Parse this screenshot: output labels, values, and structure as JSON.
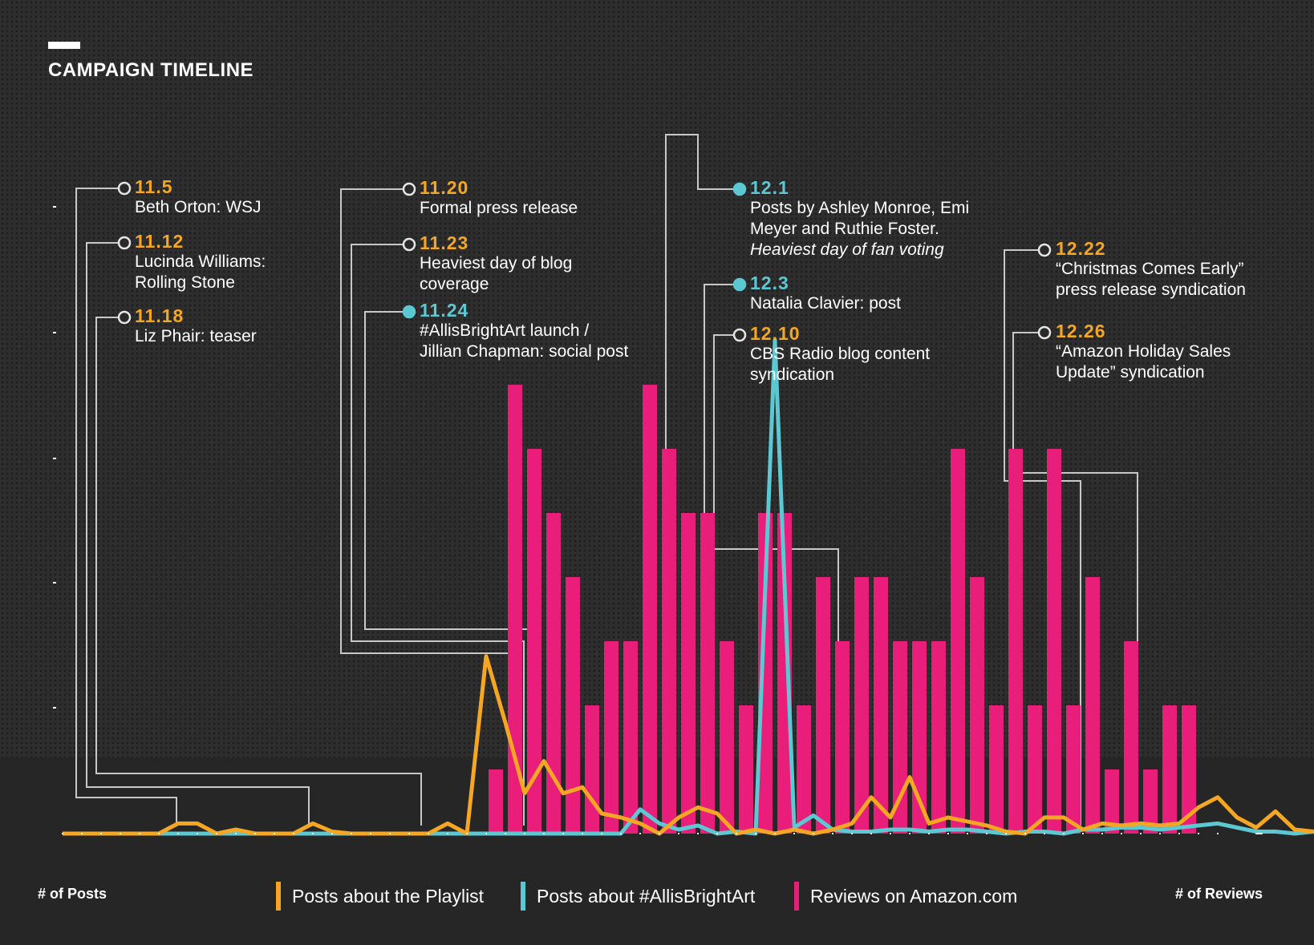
{
  "title": "CAMPAIGN TIMELINE",
  "colors": {
    "background": "#2a2a2a",
    "bottom_band": "#262626",
    "playlist": "#f5a623",
    "allisbrightart": "#5bc8d2",
    "reviews": "#e91e7a",
    "leader": "#c8c8c8",
    "text": "#ffffff"
  },
  "axes": {
    "left_label": "# of Posts",
    "right_label": "# of Reviews"
  },
  "legend": {
    "playlist": "Posts about the Playlist",
    "allisbrightart": "Posts about #AllisBrightArt",
    "reviews": "Reviews on Amazon.com"
  },
  "annotations": [
    {
      "id": "a-11-5",
      "date": "11.5",
      "color": "orange",
      "lines": [
        "Beth Orton: WSJ"
      ]
    },
    {
      "id": "a-11-12",
      "date": "11.12",
      "color": "orange",
      "lines": [
        "Lucinda Williams:",
        "Rolling Stone"
      ]
    },
    {
      "id": "a-11-18",
      "date": "11.18",
      "color": "orange",
      "lines": [
        "Liz Phair: teaser"
      ]
    },
    {
      "id": "a-11-20",
      "date": "11.20",
      "color": "orange",
      "lines": [
        "Formal press release"
      ]
    },
    {
      "id": "a-11-23",
      "date": "11.23",
      "color": "orange",
      "lines": [
        "Heaviest day of blog",
        "coverage"
      ]
    },
    {
      "id": "a-11-24",
      "date": "11.24",
      "color": "teal",
      "lines": [
        "#AllisBrightArt launch /",
        "Jillian Chapman: social post"
      ]
    },
    {
      "id": "a-12-1",
      "date": "12.1",
      "color": "teal",
      "lines": [
        "Posts by Ashley Monroe, Emi",
        "Meyer and Ruthie Foster."
      ],
      "italic_line": "Heaviest day of fan voting"
    },
    {
      "id": "a-12-3",
      "date": "12.3",
      "color": "teal",
      "lines": [
        "Natalia Clavier: post"
      ]
    },
    {
      "id": "a-12-10",
      "date": "12.10",
      "color": "orange",
      "lines": [
        "CBS Radio blog content",
        "syndication"
      ]
    },
    {
      "id": "a-12-22",
      "date": "12.22",
      "color": "orange",
      "lines": [
        "“Christmas Comes Early”",
        "press release syndication"
      ]
    },
    {
      "id": "a-12-26",
      "date": "12.26",
      "color": "orange",
      "lines": [
        "“Amazon Holiday Sales",
        "Update” syndication"
      ]
    }
  ],
  "chart_data": {
    "type": "bar+line",
    "title": "CAMPAIGN TIMELINE",
    "x_range": [
      0,
      61
    ],
    "posts_ylim": [
      0,
      35
    ],
    "reviews_ylim": [
      0,
      8
    ],
    "series": [
      {
        "name": "Posts about the Playlist",
        "type": "line",
        "color_key": "playlist",
        "values": [
          0,
          0,
          0,
          0,
          0,
          0,
          0.5,
          0.5,
          0,
          0.2,
          0,
          0,
          0,
          0.5,
          0.1,
          0,
          0,
          0,
          0,
          0,
          0.5,
          0,
          8.8,
          5.5,
          2,
          3.6,
          2,
          2.3,
          1,
          0.8,
          0.5,
          0,
          0.8,
          1.3,
          1,
          0,
          0.2,
          0,
          0.2,
          0,
          0.2,
          0.5,
          1.8,
          0.8,
          2.8,
          0.5,
          0.8,
          0.6,
          0.4,
          0.1,
          0,
          0.8,
          0.8,
          0.2,
          0.5,
          0.4,
          0.5,
          0.4,
          0.5,
          1.3,
          1.8,
          0.8,
          0.3,
          1.1,
          0.2,
          0.1,
          0,
          0.2,
          0,
          0.2,
          0.1
        ]
      },
      {
        "name": "Posts about #AllisBrightArt",
        "type": "line",
        "color_key": "allisbrightart",
        "values": [
          0,
          0,
          0,
          0,
          0,
          0,
          0,
          0,
          0,
          0,
          0,
          0,
          0,
          0,
          0,
          0,
          0,
          0,
          0,
          0,
          0,
          0,
          0,
          0,
          0,
          0,
          0,
          0,
          0,
          0,
          1.2,
          0.5,
          0.2,
          0.4,
          0,
          0.1,
          0,
          24.5,
          0.3,
          0.9,
          0.2,
          0.1,
          0.1,
          0.2,
          0.2,
          0.1,
          0.2,
          0.2,
          0.1,
          0,
          0.1,
          0.1,
          0,
          0.2,
          0.2,
          0.3,
          0.3,
          0.2,
          0.3,
          0.4,
          0.5,
          0.3,
          0.1,
          0.1,
          0,
          0.1,
          0,
          0,
          0,
          0,
          0
        ]
      },
      {
        "name": "Reviews on Amazon.com",
        "type": "bar",
        "color_key": "reviews",
        "start_index": 22,
        "values": [
          1,
          7,
          6,
          5,
          4,
          2,
          3,
          3,
          7,
          6,
          5,
          5,
          3,
          2,
          5,
          5,
          2,
          4,
          3,
          4,
          4,
          3,
          3,
          3,
          6,
          4,
          2,
          6,
          2,
          6,
          2,
          4,
          1,
          3,
          1,
          2,
          2
        ]
      }
    ]
  }
}
